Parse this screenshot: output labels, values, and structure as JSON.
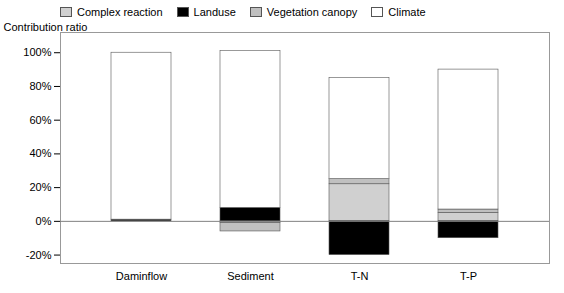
{
  "chart_data": {
    "type": "bar",
    "stacked": true,
    "categories": [
      "Daminflow",
      "Sediment",
      "T-N",
      "T-P"
    ],
    "series": [
      {
        "name": "Complex reaction",
        "color": "#d0d0d0",
        "values": [
          0,
          -1,
          22,
          5
        ]
      },
      {
        "name": "Landuse",
        "color": "#000000",
        "values": [
          1,
          8,
          -20,
          -10
        ]
      },
      {
        "name": "Vegetation canopy",
        "color": "#c0c0c0",
        "values": [
          0,
          -5,
          3,
          2
        ]
      },
      {
        "name": "Climate",
        "color": "#ffffff",
        "values": [
          99,
          93,
          60,
          83
        ]
      }
    ],
    "ylabel": "Contribution ratio",
    "ylim": [
      -25,
      112
    ],
    "yticks": [
      {
        "value": -20,
        "label": "-20%"
      },
      {
        "value": 0,
        "label": "0%"
      },
      {
        "value": 20,
        "label": "20%"
      },
      {
        "value": 40,
        "label": "40%"
      },
      {
        "value": 60,
        "label": "60%"
      },
      {
        "value": 80,
        "label": "80%"
      },
      {
        "value": 100,
        "label": "100%"
      }
    ],
    "grid": false,
    "legend": "top left"
  }
}
